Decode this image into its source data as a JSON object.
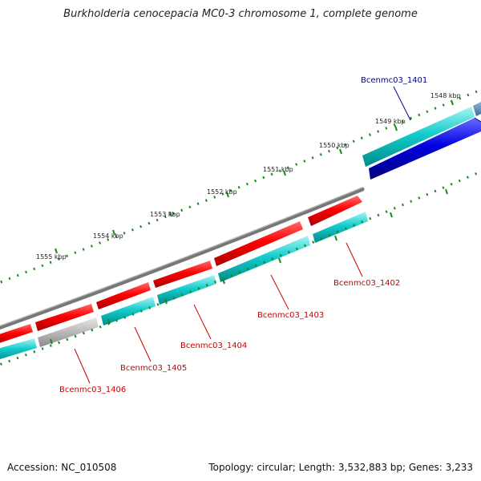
{
  "title": "Burkholderia cenocepacia MC0-3 chromosome 1, complete genome",
  "footer": {
    "accession": "Accession: NC_010508",
    "summary": "Topology: circular; Length: 3,532,883 bp; Genes: 3,233"
  },
  "ticks": [
    "1548 kbp",
    "1549 kbp",
    "1550 kbp",
    "1551 kbp",
    "1552 kbp",
    "1553 kbp",
    "1554 kbp",
    "1555 kbp"
  ],
  "genes": [
    {
      "name": "Bcenmc03_1401",
      "color": "#00008b"
    },
    {
      "name": "Bcenmc03_1402",
      "color": "#cc0000"
    },
    {
      "name": "Bcenmc03_1403",
      "color": "#cc0000"
    },
    {
      "name": "Bcenmc03_1404",
      "color": "#cc0000"
    },
    {
      "name": "Bcenmc03_1405",
      "color": "#cc0000"
    },
    {
      "name": "Bcenmc03_1406",
      "color": "#cc0000"
    }
  ],
  "colors": {
    "forward_cds": "#ff0000",
    "forward_gene": "#00cccc",
    "reverse_cds": "#0000dd",
    "backbone": "#888888",
    "pseudo": "#b0b0b0",
    "tick": "#1a8a1a"
  }
}
